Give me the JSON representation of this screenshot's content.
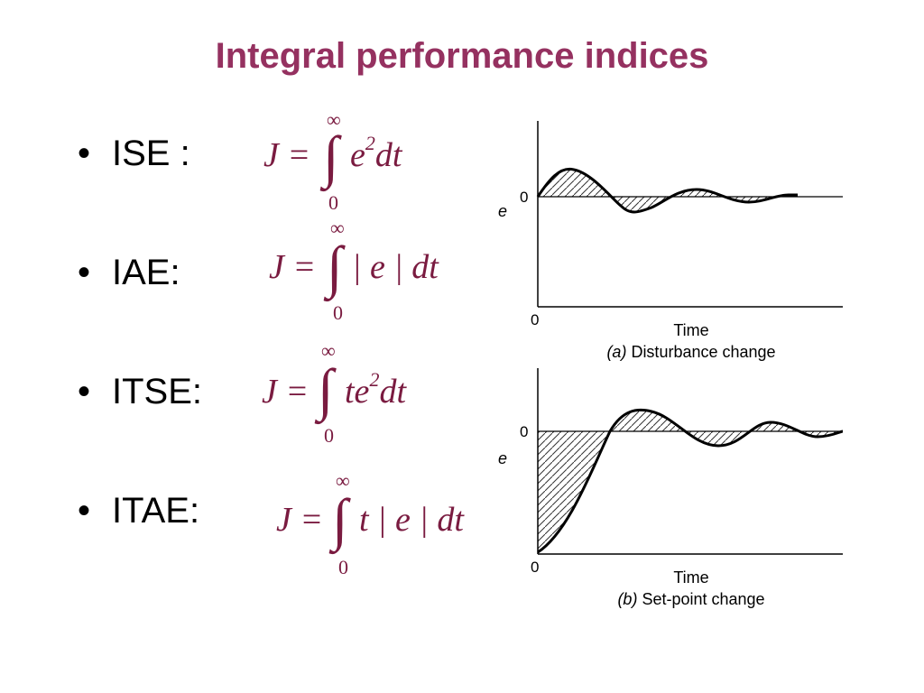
{
  "slide": {
    "title": "Integral performance indices",
    "title_color": "#953160",
    "formula_color": "#7a1b40"
  },
  "indices": [
    {
      "label": "ISE :",
      "lhs": "J =",
      "upper": "∞",
      "lower": "0",
      "integrand": "e",
      "power": "2",
      "tail": "dt"
    },
    {
      "label": "IAE:",
      "lhs": "J =",
      "upper": "∞",
      "lower": "0",
      "integrand": "| e | dt",
      "power": "",
      "tail": ""
    },
    {
      "label": "ITSE:",
      "lhs": "J =",
      "upper": "∞",
      "lower": "0",
      "integrand": "te",
      "power": "2",
      "tail": "dt"
    },
    {
      "label": "ITAE:",
      "lhs": "J =",
      "upper": "∞",
      "lower": "0",
      "integrand": "t | e | dt",
      "power": "",
      "tail": ""
    }
  ],
  "figures": [
    {
      "zero_label": "0",
      "y_label": "e",
      "origin_label": "0",
      "x_label": "Time",
      "caption_letter": "(a)",
      "caption_text": " Disturbance change"
    },
    {
      "zero_label": "0",
      "y_label": "e",
      "origin_label": "0",
      "x_label": "Time",
      "caption_letter": "(b)",
      "caption_text": " Set-point change"
    }
  ]
}
